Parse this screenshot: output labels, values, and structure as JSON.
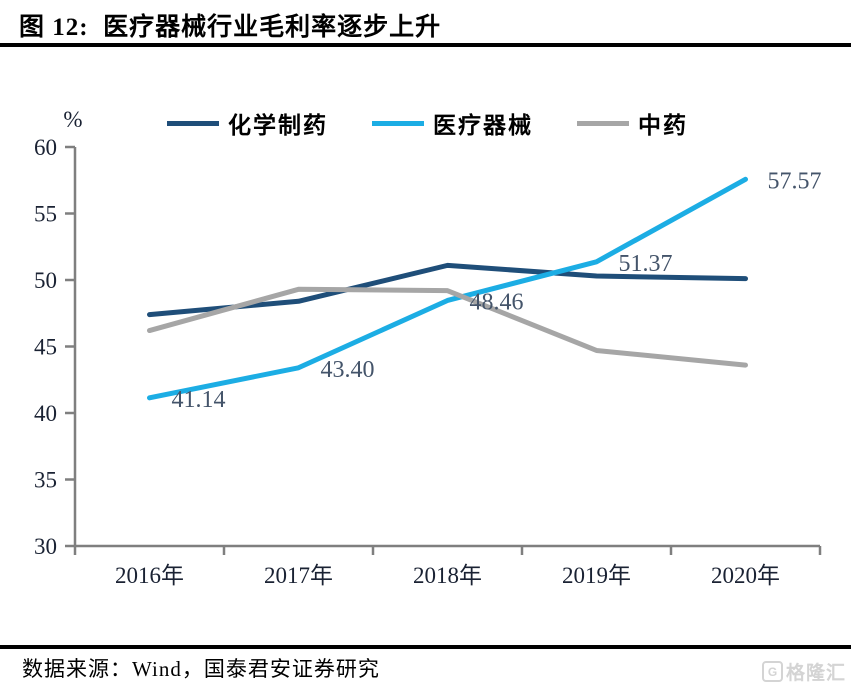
{
  "header": {
    "title": "图 12:  医疗器械行业毛利率逐步上升"
  },
  "footer": {
    "source": "数据来源：Wind，国泰君安证券研究",
    "watermark": "格隆汇",
    "watermark_icon": "G"
  },
  "chart_data": {
    "type": "line",
    "title": "医疗器械行业毛利率逐步上升",
    "unit_label": "%",
    "xlabel": "",
    "ylabel": "%",
    "categories": [
      "2016年",
      "2017年",
      "2018年",
      "2019年",
      "2020年"
    ],
    "series": [
      {
        "name": "化学制药",
        "color": "#1F4E79",
        "values": [
          47.4,
          48.4,
          51.1,
          50.3,
          50.1
        ],
        "labeled": false
      },
      {
        "name": "医疗器械",
        "color": "#1CADE4",
        "values": [
          41.14,
          43.4,
          48.46,
          51.37,
          57.57
        ],
        "labeled": true,
        "labels": [
          "41.14",
          "43.40",
          "48.46",
          "51.37",
          "57.57"
        ]
      },
      {
        "name": "中药",
        "color": "#A6A6A6",
        "values": [
          46.2,
          49.3,
          49.2,
          44.7,
          43.6
        ],
        "labeled": false
      }
    ],
    "ylim": [
      30,
      60
    ],
    "yticks": [
      60,
      55,
      50,
      45,
      40,
      35,
      30
    ],
    "grid": false,
    "legend_position": "top",
    "axis_color": "#7F7F7F",
    "tick_label_color": "#1a2233",
    "point_label_color": "#44546A"
  }
}
